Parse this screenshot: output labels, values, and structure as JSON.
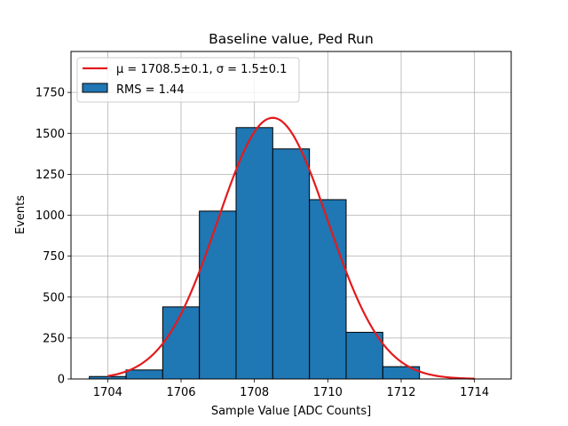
{
  "chart_data": {
    "type": "bar",
    "title": "Baseline value, Ped Run",
    "xlabel": "Sample Value [ADC Counts]",
    "ylabel": "Events",
    "xlim": [
      1703.0,
      1715.0
    ],
    "ylim": [
      0,
      2000
    ],
    "xticks": [
      1704,
      1706,
      1708,
      1710,
      1712,
      1714
    ],
    "yticks": [
      0,
      250,
      500,
      750,
      1000,
      1250,
      1500,
      1750
    ],
    "grid": true,
    "legend_position": "top-left",
    "histogram": {
      "name": "RMS = 1.44",
      "color": "#1f77b4",
      "edge_color": "#000000",
      "bin_edges": [
        1703.5,
        1704.5,
        1705.5,
        1706.5,
        1707.5,
        1708.5,
        1709.5,
        1710.5,
        1711.5,
        1712.5
      ],
      "counts": [
        15,
        55,
        440,
        1025,
        1535,
        1405,
        1095,
        285,
        75
      ]
    },
    "fit": {
      "name": "μ = 1708.5±0.1, σ = 1.5±0.1",
      "color": "#e41a1c",
      "type": "gaussian",
      "mu": 1708.5,
      "sigma": 1.5,
      "amplitude": 1595,
      "x_range": [
        1704,
        1714
      ]
    }
  }
}
